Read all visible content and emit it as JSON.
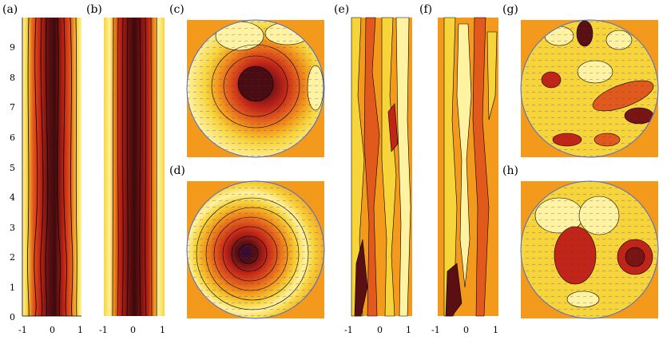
{
  "panel_labels": {
    "a": "(a)",
    "b": "(b)",
    "c": "(c)",
    "d": "(d)",
    "e": "(e)",
    "f": "(f)",
    "g": "(g)",
    "h": "(h)"
  },
  "y_axis_ticks": [
    "9",
    "8",
    "7",
    "6",
    "5",
    "4",
    "3",
    "2",
    "1",
    "0"
  ],
  "x_axis_ticks": {
    "a": [
      "-1",
      "0",
      "1"
    ],
    "b": [
      "-1",
      "0",
      "1"
    ],
    "e": [
      "-1",
      "0",
      "1"
    ],
    "f": [
      "-1",
      "0",
      "1"
    ]
  },
  "colors": {
    "background_orange": "#f39a1c",
    "light_yellow": "#fff2a0",
    "yellow": "#f7d43a",
    "orange_red": "#e25a1b",
    "red": "#c22415",
    "dark_red": "#5a0f12",
    "contour": "#000000",
    "vector": "#2b3aa8",
    "circle_outline": "#4a6bd0"
  }
}
